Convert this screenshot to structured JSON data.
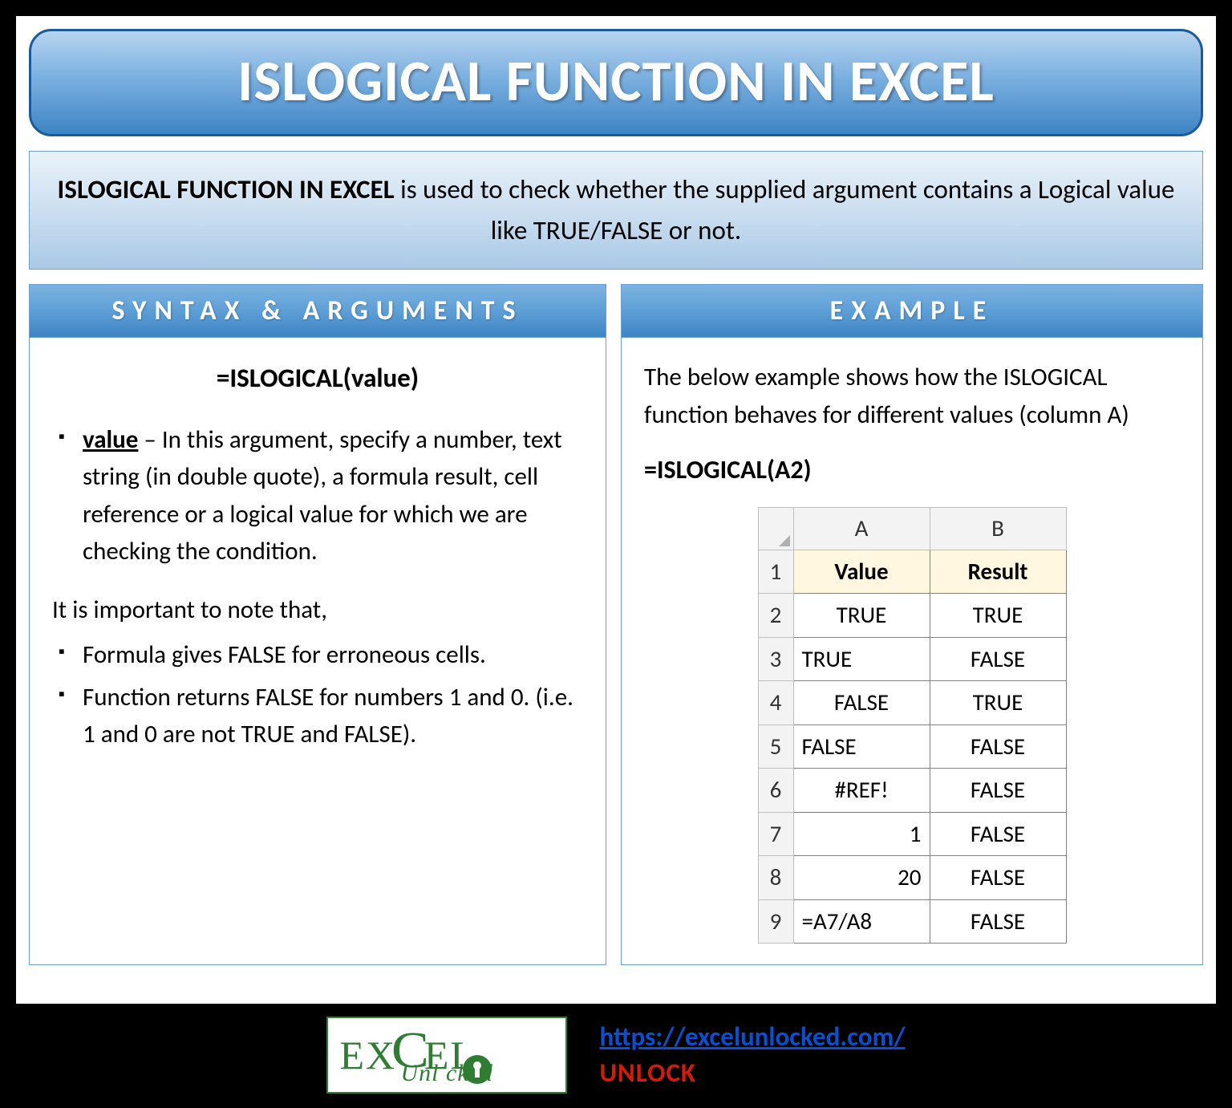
{
  "title": "ISLOGICAL FUNCTION IN EXCEL",
  "description": {
    "lead": "ISLOGICAL FUNCTION IN EXCEL",
    "rest": " is used to check whether the supplied argument contains a Logical value like TRUE/FALSE or not."
  },
  "left": {
    "header": "SYNTAX & ARGUMENTS",
    "formula": "=ISLOGICAL(value)",
    "arg_name": "value",
    "arg_desc": " – In this argument, specify a number, text string (in double quote), a formula result, cell reference or a logical value for which we are checking the condition.",
    "note_lead": "It is important to note that,",
    "notes": [
      "Formula gives FALSE for erroneous cells.",
      "Function returns FALSE for numbers 1 and 0. (i.e. 1 and 0 are not TRUE and FALSE)."
    ]
  },
  "right": {
    "header": "EXAMPLE",
    "intro": "The below example shows how the ISLOGICAL function behaves for different values (column A)",
    "formula": "=ISLOGICAL(A2)",
    "table": {
      "col_headers": [
        "A",
        "B"
      ],
      "header_row": [
        "Value",
        "Result"
      ],
      "rows": [
        {
          "n": "2",
          "a": "TRUE",
          "a_align": "center",
          "b": "TRUE"
        },
        {
          "n": "3",
          "a": "TRUE",
          "a_align": "left",
          "b": "FALSE"
        },
        {
          "n": "4",
          "a": "FALSE",
          "a_align": "center",
          "b": "TRUE"
        },
        {
          "n": "5",
          "a": "FALSE",
          "a_align": "left",
          "b": "FALSE"
        },
        {
          "n": "6",
          "a": "#REF!",
          "a_align": "center",
          "b": "FALSE"
        },
        {
          "n": "7",
          "a": "1",
          "a_align": "right",
          "b": "FALSE"
        },
        {
          "n": "8",
          "a": "20",
          "a_align": "right",
          "b": "FALSE"
        },
        {
          "n": "9",
          "a": "=A7/A8",
          "a_align": "left",
          "b": "FALSE"
        }
      ]
    }
  },
  "footer": {
    "logo_line1a": "EX",
    "logo_line1b": "C",
    "logo_line1c": "EL",
    "logo_line2": "Unl   cked",
    "url": "https://excelunlocked.com/",
    "unlock": "UNLOCK"
  },
  "colors": {
    "banner_border": "#1a5a99",
    "panel_border": "#6ca0d0",
    "link": "#0b4fd1",
    "unlock": "#d11b0b"
  }
}
